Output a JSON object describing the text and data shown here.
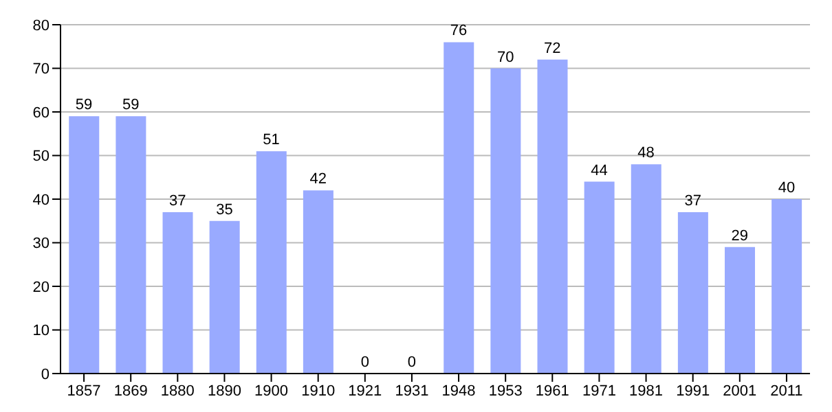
{
  "chart_data": {
    "type": "bar",
    "categories": [
      "1857",
      "1869",
      "1880",
      "1890",
      "1900",
      "1910",
      "1921",
      "1931",
      "1948",
      "1953",
      "1961",
      "1971",
      "1981",
      "1991",
      "2001",
      "2011"
    ],
    "values": [
      59,
      59,
      37,
      35,
      51,
      42,
      0,
      0,
      76,
      70,
      72,
      44,
      48,
      37,
      29,
      40
    ],
    "color": "#99aaff",
    "ylim": [
      0,
      80
    ],
    "yticks": [
      0,
      10,
      20,
      30,
      40,
      50,
      60,
      70,
      80
    ],
    "grid": "y",
    "data_labels": true
  }
}
